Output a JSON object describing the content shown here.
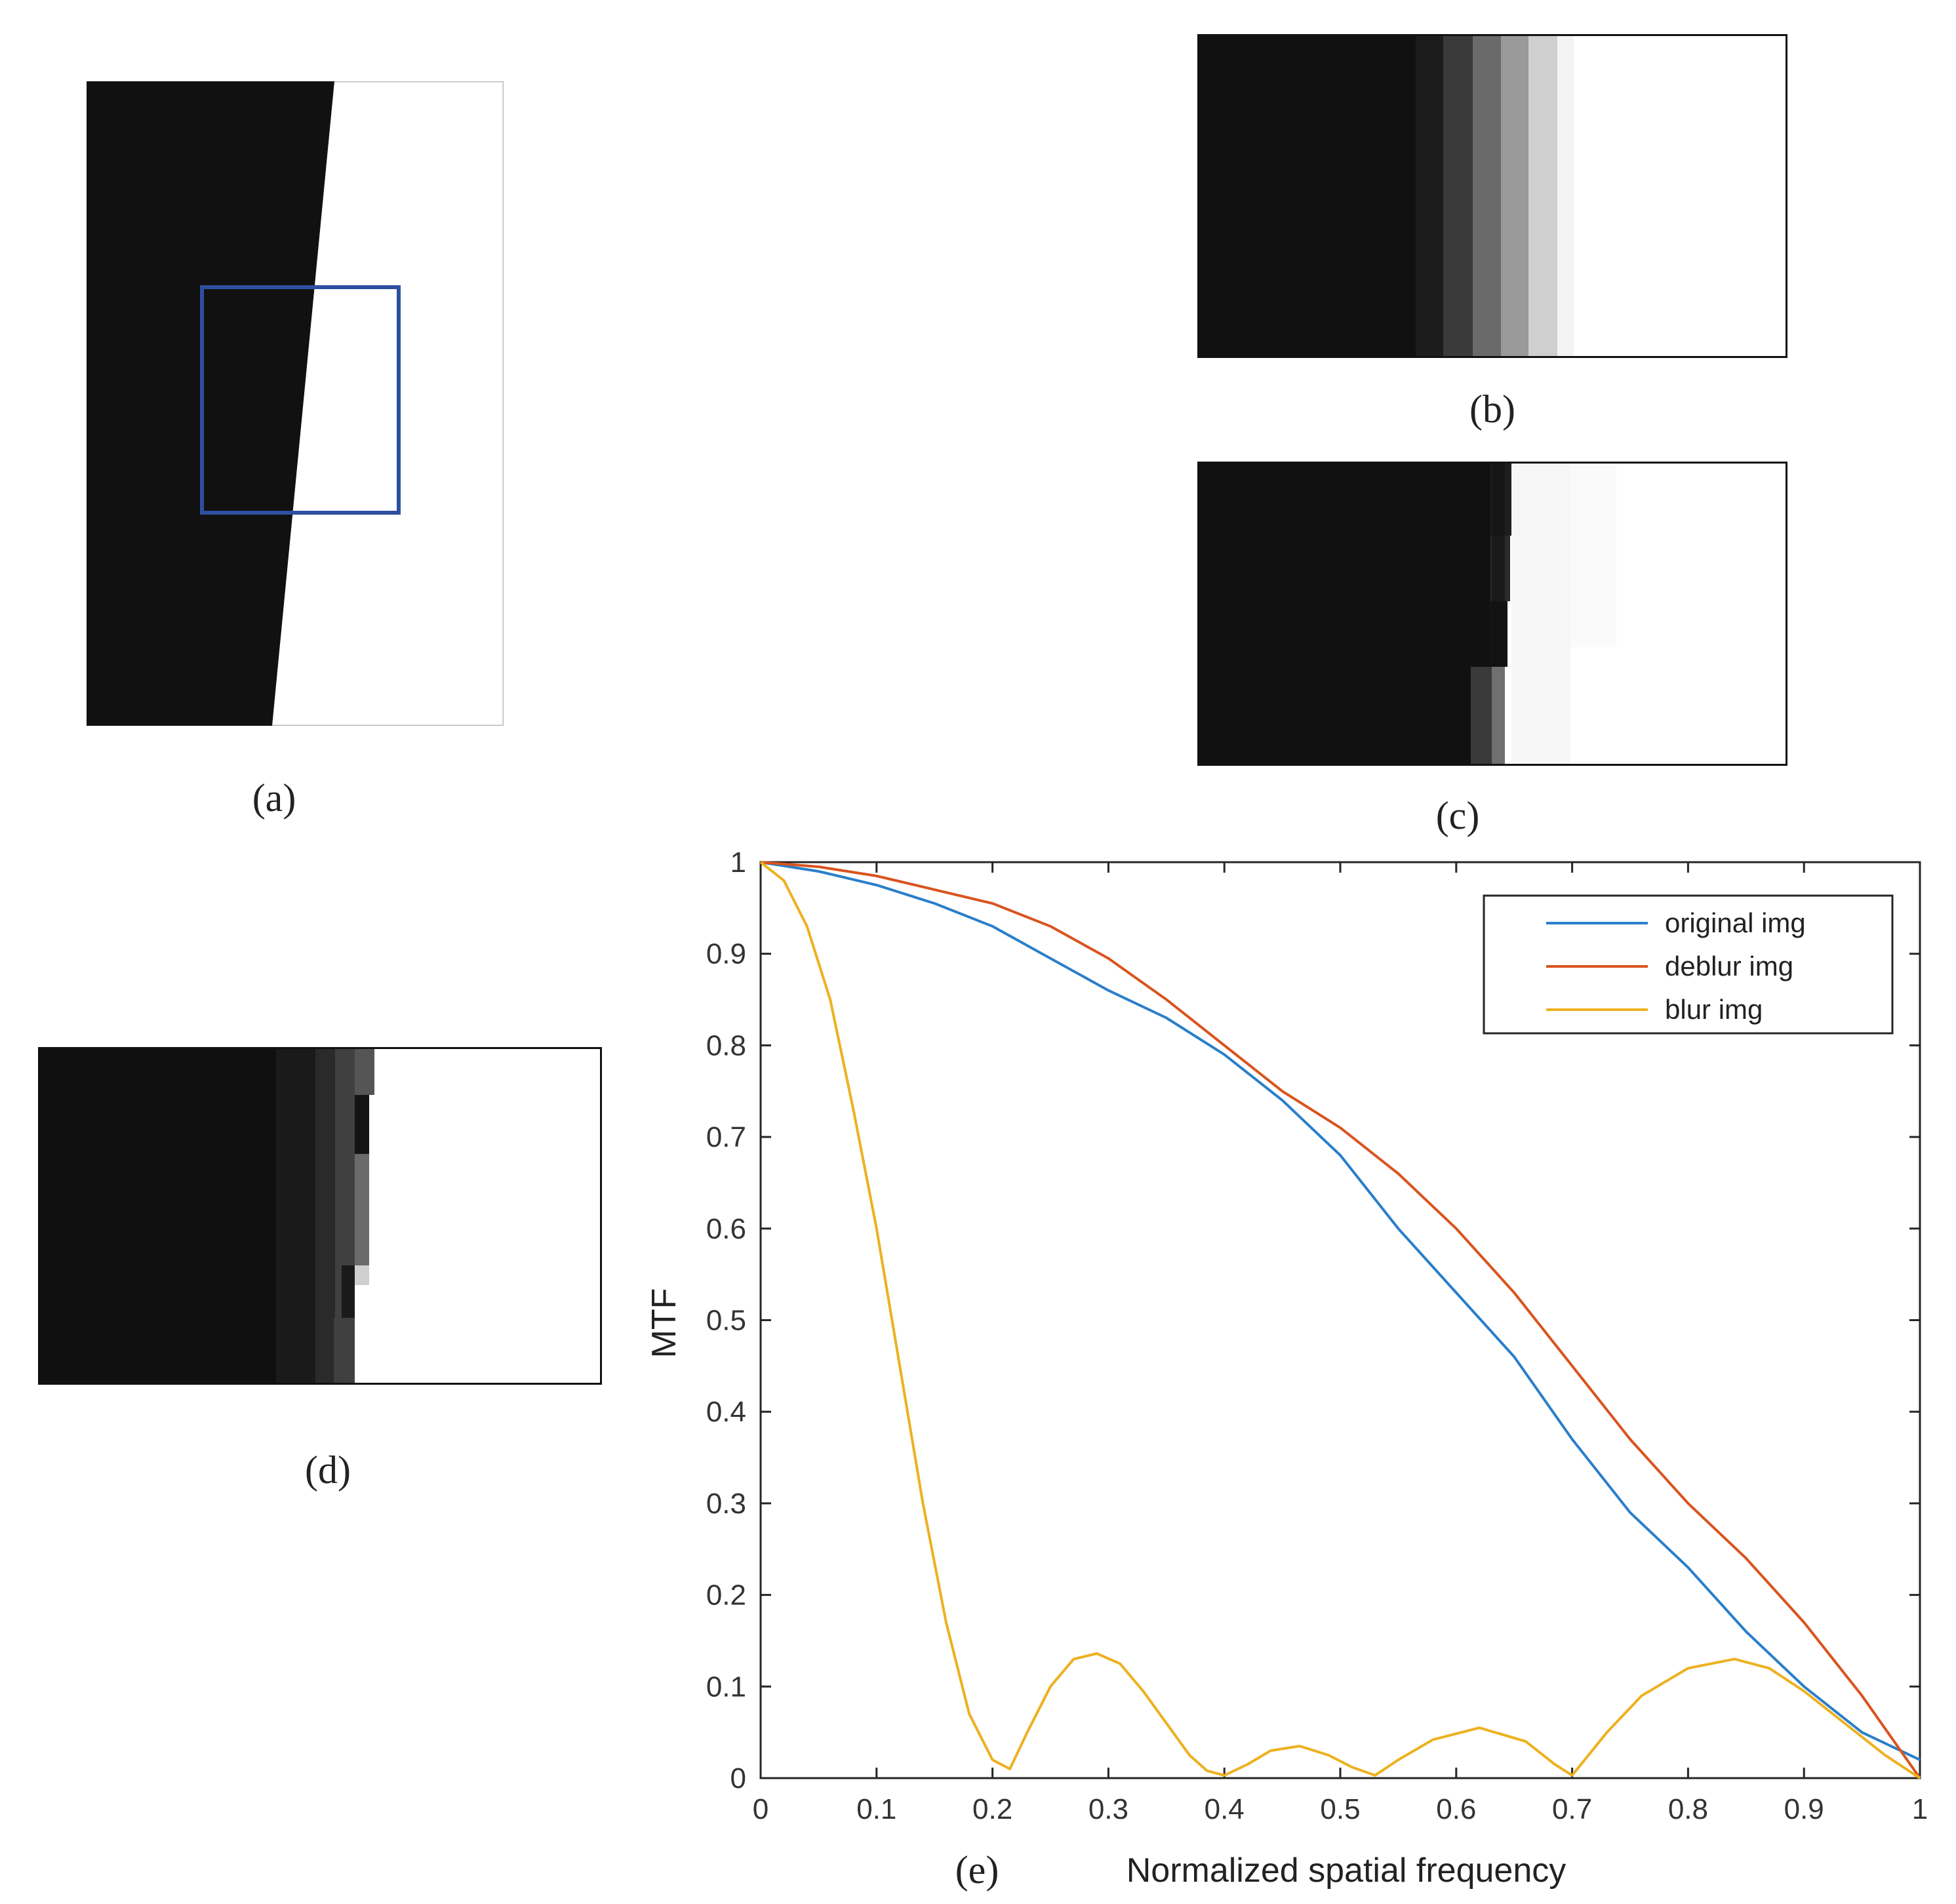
{
  "captions": {
    "a": "(a)",
    "b": "(b)",
    "c": "(c)",
    "d": "(d)",
    "e": "(e)"
  },
  "colors": {
    "dark": "#111111",
    "roi_box": "#2f4fa0",
    "original": "#2a7fc9",
    "deblur": "#d9541e",
    "blur": "#edb120"
  },
  "chart_data": {
    "type": "line",
    "title": "",
    "xlabel": "Normalized spatial frequency",
    "ylabel": "MTF",
    "xlim": [
      0,
      1
    ],
    "ylim": [
      0,
      1
    ],
    "xticks": [
      "0",
      "0.1",
      "0.2",
      "0.3",
      "0.4",
      "0.5",
      "0.6",
      "0.7",
      "0.8",
      "0.9",
      "1"
    ],
    "yticks": [
      "0",
      "0.1",
      "0.2",
      "0.3",
      "0.4",
      "0.5",
      "0.6",
      "0.7",
      "0.8",
      "0.9",
      "1"
    ],
    "grid": false,
    "legend_position": "top-right",
    "series": [
      {
        "name": "original img",
        "color": "#2a7fc9",
        "x": [
          0,
          0.05,
          0.1,
          0.15,
          0.2,
          0.25,
          0.3,
          0.35,
          0.4,
          0.45,
          0.5,
          0.55,
          0.6,
          0.65,
          0.7,
          0.75,
          0.8,
          0.85,
          0.9,
          0.95,
          1.0
        ],
        "y": [
          1.0,
          0.99,
          0.975,
          0.955,
          0.93,
          0.895,
          0.86,
          0.83,
          0.79,
          0.74,
          0.68,
          0.6,
          0.53,
          0.46,
          0.37,
          0.29,
          0.23,
          0.16,
          0.1,
          0.05,
          0.02
        ]
      },
      {
        "name": "deblur img",
        "color": "#d9541e",
        "x": [
          0,
          0.05,
          0.1,
          0.15,
          0.2,
          0.25,
          0.3,
          0.35,
          0.4,
          0.45,
          0.5,
          0.55,
          0.6,
          0.65,
          0.7,
          0.75,
          0.8,
          0.85,
          0.9,
          0.95,
          1.0
        ],
        "y": [
          1.0,
          0.995,
          0.985,
          0.97,
          0.955,
          0.93,
          0.895,
          0.85,
          0.8,
          0.75,
          0.71,
          0.66,
          0.6,
          0.53,
          0.45,
          0.37,
          0.3,
          0.24,
          0.17,
          0.09,
          0.0
        ]
      },
      {
        "name": "blur img",
        "color": "#edb120",
        "x": [
          0,
          0.02,
          0.04,
          0.06,
          0.08,
          0.1,
          0.12,
          0.14,
          0.16,
          0.18,
          0.2,
          0.215,
          0.23,
          0.25,
          0.27,
          0.29,
          0.31,
          0.33,
          0.35,
          0.37,
          0.385,
          0.4,
          0.42,
          0.44,
          0.465,
          0.49,
          0.51,
          0.53,
          0.55,
          0.58,
          0.62,
          0.66,
          0.685,
          0.7,
          0.73,
          0.76,
          0.8,
          0.84,
          0.87,
          0.9,
          0.94,
          0.97,
          1.0
        ],
        "y": [
          1.0,
          0.98,
          0.93,
          0.85,
          0.73,
          0.6,
          0.45,
          0.3,
          0.17,
          0.07,
          0.02,
          0.01,
          0.05,
          0.1,
          0.13,
          0.136,
          0.125,
          0.095,
          0.06,
          0.025,
          0.008,
          0.003,
          0.015,
          0.03,
          0.035,
          0.025,
          0.012,
          0.003,
          0.02,
          0.042,
          0.055,
          0.04,
          0.015,
          0.003,
          0.05,
          0.09,
          0.12,
          0.13,
          0.12,
          0.095,
          0.055,
          0.025,
          0.0
        ]
      }
    ]
  }
}
